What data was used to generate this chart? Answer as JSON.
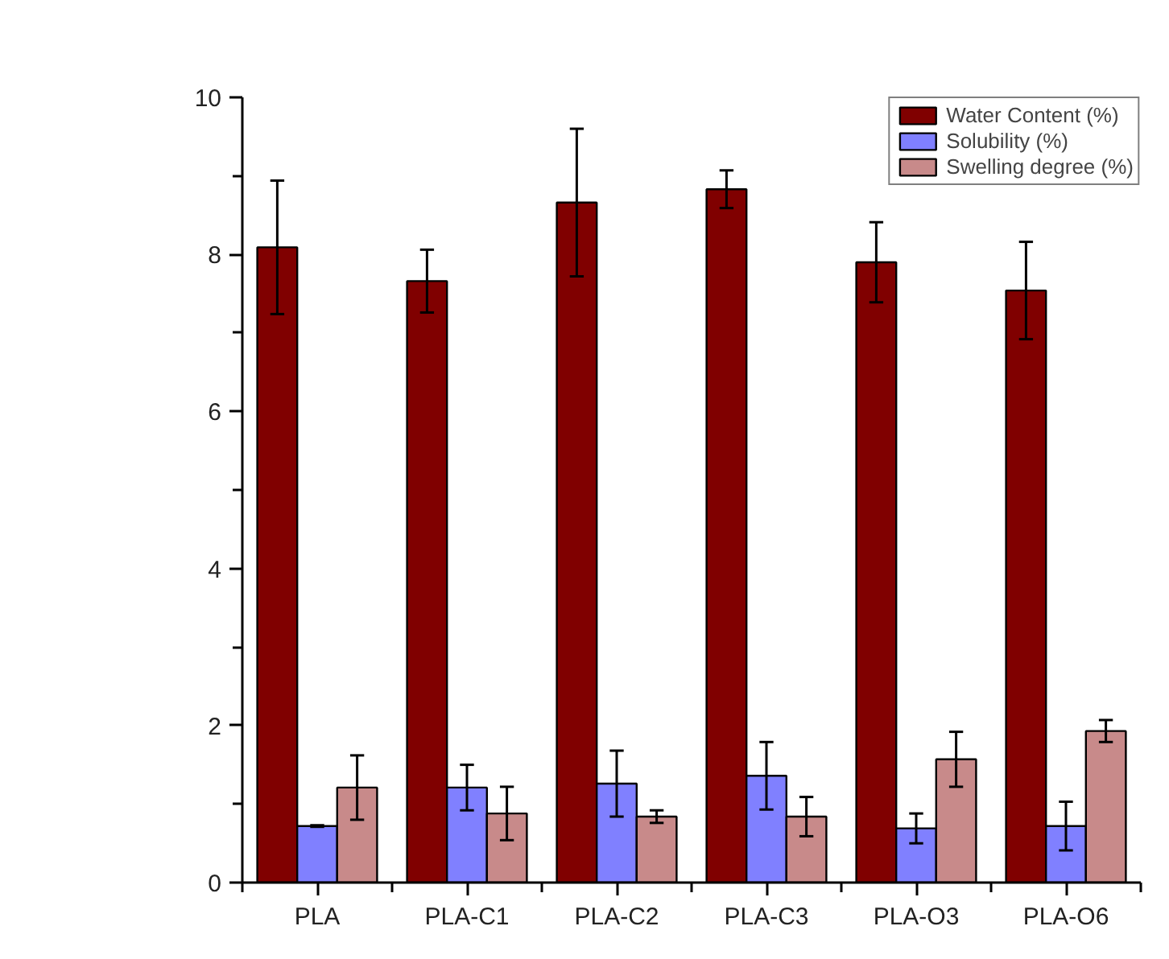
{
  "chart_data": {
    "type": "bar",
    "categories": [
      "PLA",
      "PLA-C1",
      "PLA-C2",
      "PLA-C3",
      "PLA-O3",
      "PLA-O6"
    ],
    "series": [
      {
        "name": "Water Content (%)",
        "color": "#800000",
        "values": [
          8.09,
          7.66,
          8.66,
          8.83,
          7.9,
          7.54
        ],
        "errors": [
          0.85,
          0.4,
          0.94,
          0.24,
          0.51,
          0.62
        ]
      },
      {
        "name": "Solubility (%)",
        "color": "#8080ff",
        "values": [
          0.72,
          1.21,
          1.26,
          1.36,
          0.69,
          0.72
        ],
        "errors": [
          0.01,
          0.29,
          0.42,
          0.43,
          0.19,
          0.31
        ]
      },
      {
        "name": "Swelling degree (%)",
        "color": "#c88a8a",
        "values": [
          1.21,
          0.88,
          0.84,
          0.84,
          1.57,
          1.93
        ],
        "errors": [
          0.41,
          0.34,
          0.08,
          0.25,
          0.35,
          0.14
        ]
      }
    ],
    "ylim": [
      0,
      10
    ],
    "yticks": [
      0,
      2,
      4,
      6,
      8,
      10
    ],
    "grid": false,
    "legend": "top right"
  }
}
